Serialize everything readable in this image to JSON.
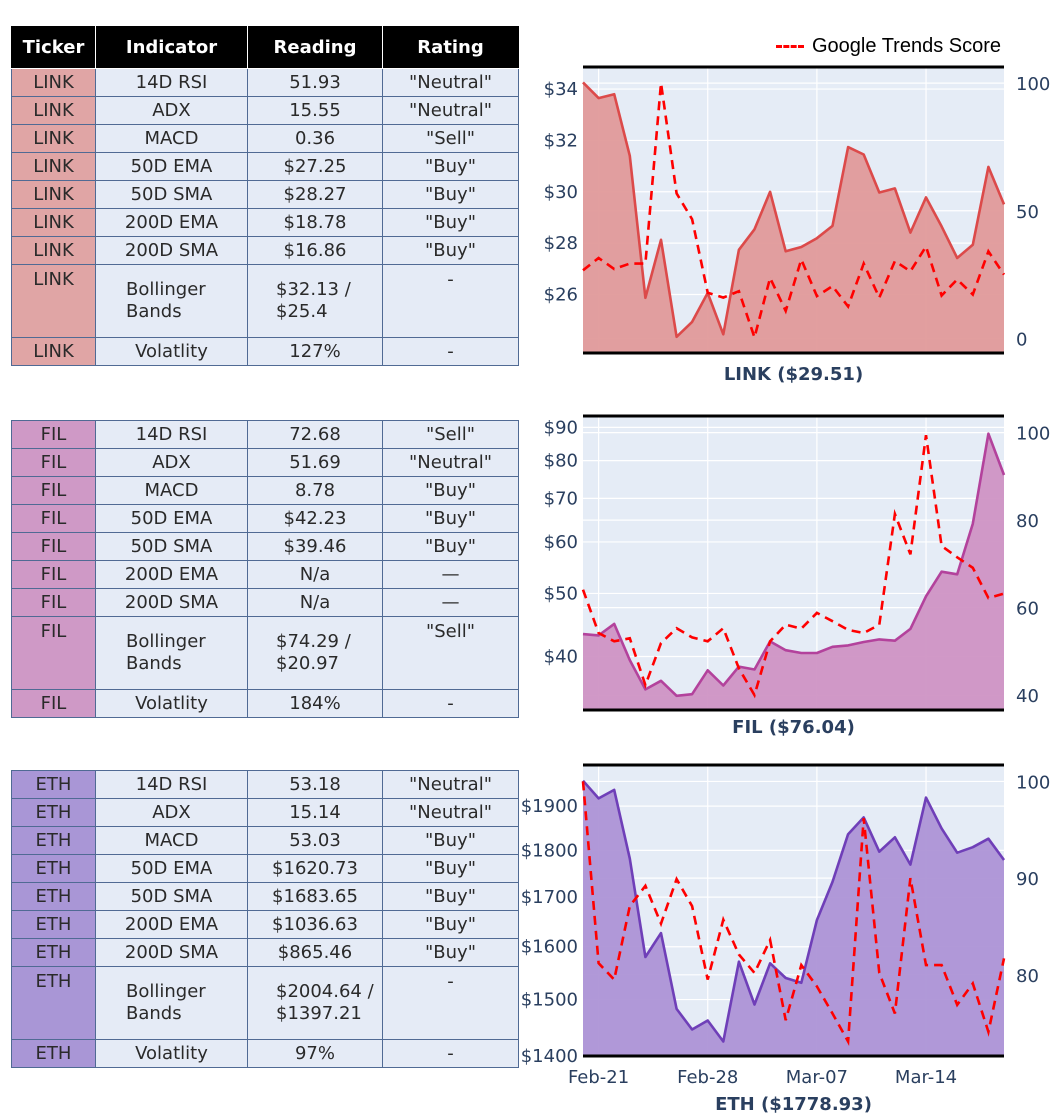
{
  "table_header": {
    "ticker": "Ticker",
    "indicator": "Indicator",
    "reading": "Reading",
    "rating": "Rating"
  },
  "tables": [
    {
      "ticker": "LINK",
      "color": "#e0a5a5",
      "rows": [
        {
          "indicator": "14D RSI",
          "reading": "51.93",
          "rating": "\"Neutral\""
        },
        {
          "indicator": "ADX",
          "reading": "15.55",
          "rating": "\"Neutral\""
        },
        {
          "indicator": "MACD",
          "reading": "0.36",
          "rating": "\"Sell\""
        },
        {
          "indicator": "50D EMA",
          "reading": "$27.25",
          "rating": "\"Buy\""
        },
        {
          "indicator": "50D SMA",
          "reading": "$28.27",
          "rating": "\"Buy\""
        },
        {
          "indicator": "200D EMA",
          "reading": "$18.78",
          "rating": "\"Buy\""
        },
        {
          "indicator": "200D SMA",
          "reading": "$16.86",
          "rating": "\"Buy\""
        },
        {
          "indicator": "Bollinger Bands",
          "reading": "$32.13 / $25.4",
          "rating": "-"
        },
        {
          "indicator": "Volatlity",
          "reading": "127%",
          "rating": "-"
        }
      ]
    },
    {
      "ticker": "FIL",
      "color": "#cf99c6",
      "rows": [
        {
          "indicator": "14D RSI",
          "reading": "72.68",
          "rating": "\"Sell\""
        },
        {
          "indicator": "ADX",
          "reading": "51.69",
          "rating": "\"Neutral\""
        },
        {
          "indicator": "MACD",
          "reading": "8.78",
          "rating": "\"Buy\""
        },
        {
          "indicator": "50D EMA",
          "reading": "$42.23",
          "rating": "\"Buy\""
        },
        {
          "indicator": "50D SMA",
          "reading": "$39.46",
          "rating": "\"Buy\""
        },
        {
          "indicator": "200D EMA",
          "reading": "N/a",
          "rating": "—"
        },
        {
          "indicator": "200D SMA",
          "reading": "N/a",
          "rating": "—"
        },
        {
          "indicator": "Bollinger Bands",
          "reading": "$74.29 / $20.97",
          "rating": "\"Sell\""
        },
        {
          "indicator": "Volatlity",
          "reading": "184%",
          "rating": "-"
        }
      ]
    },
    {
      "ticker": "ETH",
      "color": "#a996d6",
      "rows": [
        {
          "indicator": "14D RSI",
          "reading": "53.18",
          "rating": "\"Neutral\""
        },
        {
          "indicator": "ADX",
          "reading": "15.14",
          "rating": "\"Neutral\""
        },
        {
          "indicator": "MACD",
          "reading": "53.03",
          "rating": "\"Buy\""
        },
        {
          "indicator": "50D EMA",
          "reading": "$1620.73",
          "rating": "\"Buy\""
        },
        {
          "indicator": "50D SMA",
          "reading": "$1683.65",
          "rating": "\"Buy\""
        },
        {
          "indicator": "200D EMA",
          "reading": "$1036.63",
          "rating": "\"Buy\""
        },
        {
          "indicator": "200D SMA",
          "reading": "$865.46",
          "rating": "\"Buy\""
        },
        {
          "indicator": "Bollinger Bands",
          "reading": "$2004.64 / $1397.21",
          "rating": "-"
        },
        {
          "indicator": "Volatlity",
          "reading": "97%",
          "rating": "-"
        }
      ]
    }
  ],
  "legend": {
    "label": "Google Trends Score",
    "color": "#ff0000"
  },
  "chart_data": [
    {
      "type": "area",
      "title": "LINK ($29.51)",
      "fill": "#e09a9a",
      "line": "#dc4a4a",
      "x_tick_labels": [],
      "y_scale": "linear",
      "ylim": [
        23.72,
        34.86
      ],
      "y_ticks": [
        26,
        28,
        30,
        32,
        34
      ],
      "y_tick_labels": [
        "$26",
        "$28",
        "$30",
        "$32",
        "$34"
      ],
      "y2_ylim": [
        -5.7,
        106.3
      ],
      "y2_ticks": [
        0,
        50,
        100
      ],
      "y2_tick_labels": [
        "0",
        "50",
        "100"
      ],
      "price": [
        34.26,
        33.65,
        33.8,
        31.4,
        25.87,
        28.13,
        24.35,
        24.93,
        26.06,
        24.45,
        27.74,
        28.54,
        30.0,
        27.68,
        27.85,
        28.19,
        28.67,
        31.74,
        31.45,
        29.97,
        30.13,
        28.41,
        29.78,
        28.65,
        27.42,
        27.94,
        30.97,
        29.51
      ],
      "trends": [
        26.7,
        31.5,
        27.2,
        29.3,
        29.3,
        100,
        56.8,
        46.7,
        17.9,
        16,
        18.5,
        0.4,
        23.7,
        10.8,
        30.9,
        16.6,
        20.5,
        12.5,
        29.3,
        16,
        30.3,
        26.3,
        36,
        16.8,
        23.1,
        17.2,
        34.1,
        25
      ]
    },
    {
      "type": "area",
      "title": "FIL ($76.04)",
      "fill": "#cf94c4",
      "line": "#b3429c",
      "x_tick_labels": [],
      "y_scale": "log",
      "ylim": [
        33.1,
        93.7
      ],
      "y_ticks": [
        40,
        50,
        60,
        70,
        80,
        90
      ],
      "y_tick_labels": [
        "$40",
        "$50",
        "$60",
        "$70",
        "$80",
        "$90"
      ],
      "y2_ylim": [
        36.6,
        103.8
      ],
      "y2_ticks": [
        40,
        60,
        80,
        100
      ],
      "y2_tick_labels": [
        "40",
        "60",
        "80",
        "100"
      ],
      "price": [
        43.3,
        43.1,
        44.9,
        39.5,
        35.6,
        36.7,
        34.8,
        35.0,
        38.1,
        36.1,
        38.6,
        38.2,
        42.2,
        40.9,
        40.5,
        40.5,
        41.4,
        41.6,
        42.1,
        42.5,
        42.3,
        44.1,
        49.5,
        54.0,
        53.5,
        64.0,
        88.0,
        76.04
      ],
      "trends": [
        64.1,
        54.2,
        52.3,
        53.0,
        42.3,
        51.9,
        55.3,
        53.2,
        52.3,
        55.3,
        46.1,
        40,
        52.3,
        56.1,
        55.2,
        58.8,
        56.9,
        54.9,
        54.2,
        56.1,
        81.4,
        72.2,
        99.4,
        74.1,
        71.5,
        69.1,
        62.2,
        63.2
      ]
    },
    {
      "type": "area",
      "title": "ETH ($1778.93)",
      "fill": "#ad94d6",
      "line": "#6f3fb8",
      "x_tick_labels": [
        "Feb-21",
        "Feb-28",
        "Mar-07",
        "Mar-14"
      ],
      "x_tick_index": [
        1,
        8,
        15,
        22
      ],
      "y_scale": "log",
      "ylim": [
        1400,
        1998
      ],
      "y_ticks": [
        1400,
        1500,
        1600,
        1700,
        1800,
        1900
      ],
      "y_tick_labels": [
        "$1400",
        "$1500",
        "$1600",
        "$1700",
        "$1800",
        "$1900"
      ],
      "y2_ylim": [
        71.6,
        101.7
      ],
      "y2_ticks": [
        80,
        90,
        100
      ],
      "y2_tick_labels": [
        "80",
        "90",
        "100"
      ],
      "price": [
        1960,
        1918,
        1938,
        1782,
        1580,
        1627,
        1483,
        1446,
        1462,
        1425,
        1571,
        1491,
        1568,
        1540,
        1531,
        1653,
        1732,
        1836,
        1874,
        1797,
        1829,
        1769,
        1920,
        1849,
        1795,
        1807,
        1826,
        1778.93
      ],
      "trends": [
        100,
        81.2,
        79.5,
        87.1,
        89.2,
        85.3,
        89.9,
        87.1,
        79.5,
        85.7,
        82.1,
        80.2,
        83.6,
        75.3,
        81.0,
        78.8,
        76.0,
        73.1,
        96.2,
        80.2,
        76.0,
        90.0,
        81.0,
        81.0,
        76.9,
        79.1,
        74.1,
        81.7
      ]
    }
  ]
}
